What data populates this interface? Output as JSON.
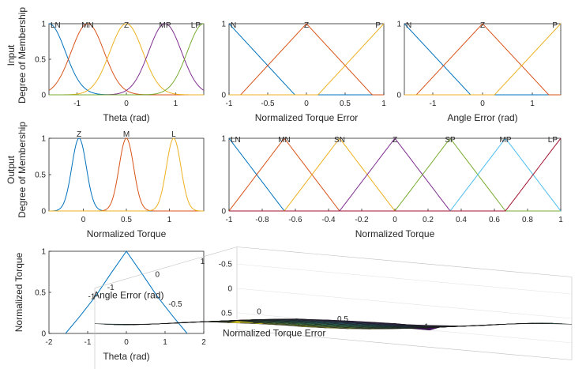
{
  "figure": {
    "row_labels": [
      {
        "lines": [
          "Input",
          "Degree of Membership"
        ]
      },
      {
        "lines": [
          "Output",
          "Degree of Membership"
        ]
      }
    ]
  },
  "colors": [
    "#0072BD",
    "#D95319",
    "#EDB120",
    "#7E2F8E",
    "#77AC30",
    "#4DBEEE",
    "#A2142F"
  ],
  "chart_data": [
    {
      "id": "theta",
      "type": "line",
      "xlabel": "Theta (rad)",
      "xlim": [
        -1.5708,
        1.5708
      ],
      "ylim": [
        0,
        1
      ],
      "xticks": [
        {
          "v": -1,
          "label": "-1"
        },
        {
          "v": 0,
          "label": "0"
        },
        {
          "v": 1,
          "label": "1"
        }
      ],
      "yticks": [
        {
          "v": 0,
          "label": "0"
        },
        {
          "v": 0.5,
          "label": "0.5"
        },
        {
          "v": 1,
          "label": "1"
        }
      ],
      "series": [
        {
          "name": "LN",
          "shape": "gauss",
          "sigma": 0.3335,
          "center": -1.5708
        },
        {
          "name": "MN",
          "shape": "gauss",
          "sigma": 0.3335,
          "center": -0.7854
        },
        {
          "name": "Z",
          "shape": "gauss",
          "sigma": 0.3335,
          "center": 0
        },
        {
          "name": "MP",
          "shape": "gauss",
          "sigma": 0.3335,
          "center": 0.7854
        },
        {
          "name": "LP",
          "shape": "gauss",
          "sigma": 0.3335,
          "center": 1.5708
        }
      ]
    },
    {
      "id": "torque-error",
      "type": "line",
      "xlabel": "Normalized Torque Error",
      "xlim": [
        -1,
        1
      ],
      "ylim": [
        0,
        1
      ],
      "xticks": [
        {
          "v": -1,
          "label": "-1"
        },
        {
          "v": -0.5,
          "label": "-0.5"
        },
        {
          "v": 0,
          "label": "0"
        },
        {
          "v": 0.5,
          "label": "0.5"
        },
        {
          "v": 1,
          "label": "1"
        }
      ],
      "yticks": [
        {
          "v": 0,
          "label": "0"
        },
        {
          "v": 1,
          "label": "1"
        }
      ],
      "series": [
        {
          "name": "N",
          "shape": "trimf",
          "params": [
            -1.85,
            -1,
            -0.15
          ]
        },
        {
          "name": "Z",
          "shape": "trimf",
          "params": [
            -0.85,
            0,
            0.85
          ]
        },
        {
          "name": "P",
          "shape": "trimf",
          "params": [
            0.15,
            1,
            1.85
          ]
        }
      ]
    },
    {
      "id": "angle-error",
      "type": "line",
      "xlabel": "Angle Error (rad)",
      "xlim": [
        -1.5708,
        1.5708
      ],
      "ylim": [
        0,
        1
      ],
      "xticks": [
        {
          "v": -1,
          "label": "-1"
        },
        {
          "v": 0,
          "label": "0"
        },
        {
          "v": 1,
          "label": "1"
        }
      ],
      "yticks": [
        {
          "v": 0,
          "label": "0"
        },
        {
          "v": 1,
          "label": "1"
        }
      ],
      "series": [
        {
          "name": "N",
          "shape": "trimf",
          "params": [
            -2.9,
            -1.5708,
            -0.24
          ]
        },
        {
          "name": "Z",
          "shape": "trimf",
          "params": [
            -1.33,
            0,
            1.33
          ]
        },
        {
          "name": "P",
          "shape": "trimf",
          "params": [
            0.24,
            1.5708,
            2.9
          ]
        }
      ]
    },
    {
      "id": "out-torque",
      "type": "line",
      "xlabel": "Normalized Torque",
      "xlim": [
        -0.4,
        1.4
      ],
      "ylim": [
        0,
        1
      ],
      "xticks": [
        {
          "v": 0,
          "label": "0"
        },
        {
          "v": 0.5,
          "label": "0.5"
        },
        {
          "v": 1,
          "label": "1"
        }
      ],
      "yticks": [
        {
          "v": 0,
          "label": "0"
        },
        {
          "v": 0.5,
          "label": "0.5"
        },
        {
          "v": 1,
          "label": "1"
        }
      ],
      "series": [
        {
          "name": "Z",
          "shape": "gauss",
          "sigma": 0.0846,
          "center": -0.05
        },
        {
          "name": "M",
          "shape": "gauss",
          "sigma": 0.0846,
          "center": 0.5
        },
        {
          "name": "L",
          "shape": "gauss",
          "sigma": 0.0846,
          "center": 1.05
        }
      ]
    },
    {
      "id": "out-norm-torque",
      "type": "line",
      "xlabel": "Normalized Torque",
      "xlim": [
        -1,
        1
      ],
      "ylim": [
        0,
        1
      ],
      "xticks": [
        {
          "v": -1,
          "label": "-1"
        },
        {
          "v": -0.8,
          "label": "-0.8"
        },
        {
          "v": -0.6,
          "label": "-0.6"
        },
        {
          "v": -0.4,
          "label": "-0.4"
        },
        {
          "v": -0.2,
          "label": "-0.2"
        },
        {
          "v": 0,
          "label": "0"
        },
        {
          "v": 0.2,
          "label": "0.2"
        },
        {
          "v": 0.4,
          "label": "0.4"
        },
        {
          "v": 0.6,
          "label": "0.6"
        },
        {
          "v": 0.8,
          "label": "0.8"
        },
        {
          "v": 1,
          "label": "1"
        }
      ],
      "yticks": [
        {
          "v": 0,
          "label": "0"
        },
        {
          "v": 1,
          "label": "1"
        }
      ],
      "series": [
        {
          "name": "LN",
          "shape": "trimf",
          "params": [
            -1.3333,
            -1,
            -0.6667
          ]
        },
        {
          "name": "MN",
          "shape": "trimf",
          "params": [
            -1,
            -0.6667,
            -0.3333
          ]
        },
        {
          "name": "SN",
          "shape": "trimf",
          "params": [
            -0.6667,
            -0.3333,
            0
          ]
        },
        {
          "name": "Z",
          "shape": "trimf",
          "params": [
            -0.3333,
            0,
            0.3333
          ]
        },
        {
          "name": "SP",
          "shape": "trimf",
          "params": [
            0,
            0.3333,
            0.6667
          ]
        },
        {
          "name": "MP",
          "shape": "trimf",
          "params": [
            0.3333,
            0.6667,
            1
          ]
        },
        {
          "name": "LP",
          "shape": "trimf",
          "params": [
            0.6667,
            1,
            1.3333
          ]
        }
      ]
    },
    {
      "id": "output-vs-theta",
      "type": "line",
      "xlabel": "Theta (rad)",
      "ylabel": "Normalized Torque",
      "xlim": [
        -2,
        2
      ],
      "ylim": [
        0,
        1
      ],
      "xticks": [
        {
          "v": -2,
          "label": "-2"
        },
        {
          "v": -1,
          "label": "-1"
        },
        {
          "v": 0,
          "label": "0"
        },
        {
          "v": 1,
          "label": "1"
        },
        {
          "v": 2,
          "label": "2"
        }
      ],
      "yticks": [
        {
          "v": 0,
          "label": "0"
        },
        {
          "v": 0.5,
          "label": "0.5"
        },
        {
          "v": 1,
          "label": "1"
        }
      ],
      "series": [
        {
          "x": [
            -1.5708,
            -1.2,
            -0.8,
            -0.4,
            0,
            0.4,
            0.8,
            1.2,
            1.5708
          ],
          "y": [
            0,
            0.21,
            0.45,
            0.73,
            1,
            0.73,
            0.45,
            0.21,
            0
          ]
        }
      ]
    },
    {
      "id": "surface",
      "type": "surface",
      "xlabel": "Normalized Torque Error",
      "ylabel": "Angle Error (rad)",
      "xlim": [
        -1,
        1
      ],
      "ylim": [
        -1.5708,
        1.5708
      ],
      "zlim": [
        -0.85,
        0.85
      ],
      "xticks": [
        {
          "v": -1,
          "label": "-1"
        },
        {
          "v": -0.5,
          "label": "-0.5"
        },
        {
          "v": 0,
          "label": "0"
        },
        {
          "v": 0.5,
          "label": "0.5"
        },
        {
          "v": 1,
          "label": "1"
        }
      ],
      "yticks": [
        {
          "v": -1,
          "label": "-1"
        },
        {
          "v": 0,
          "label": "0"
        },
        {
          "v": 1,
          "label": "1"
        }
      ],
      "zticks": [
        {
          "v": -0.5,
          "label": "-0.5"
        },
        {
          "v": 0,
          "label": "0"
        },
        {
          "v": 0.5,
          "label": "0.5"
        }
      ],
      "grid_n": 15,
      "output_levels": [
        -1,
        -0.6667,
        -0.3333,
        0,
        0.3333,
        0.6667,
        1
      ]
    }
  ]
}
